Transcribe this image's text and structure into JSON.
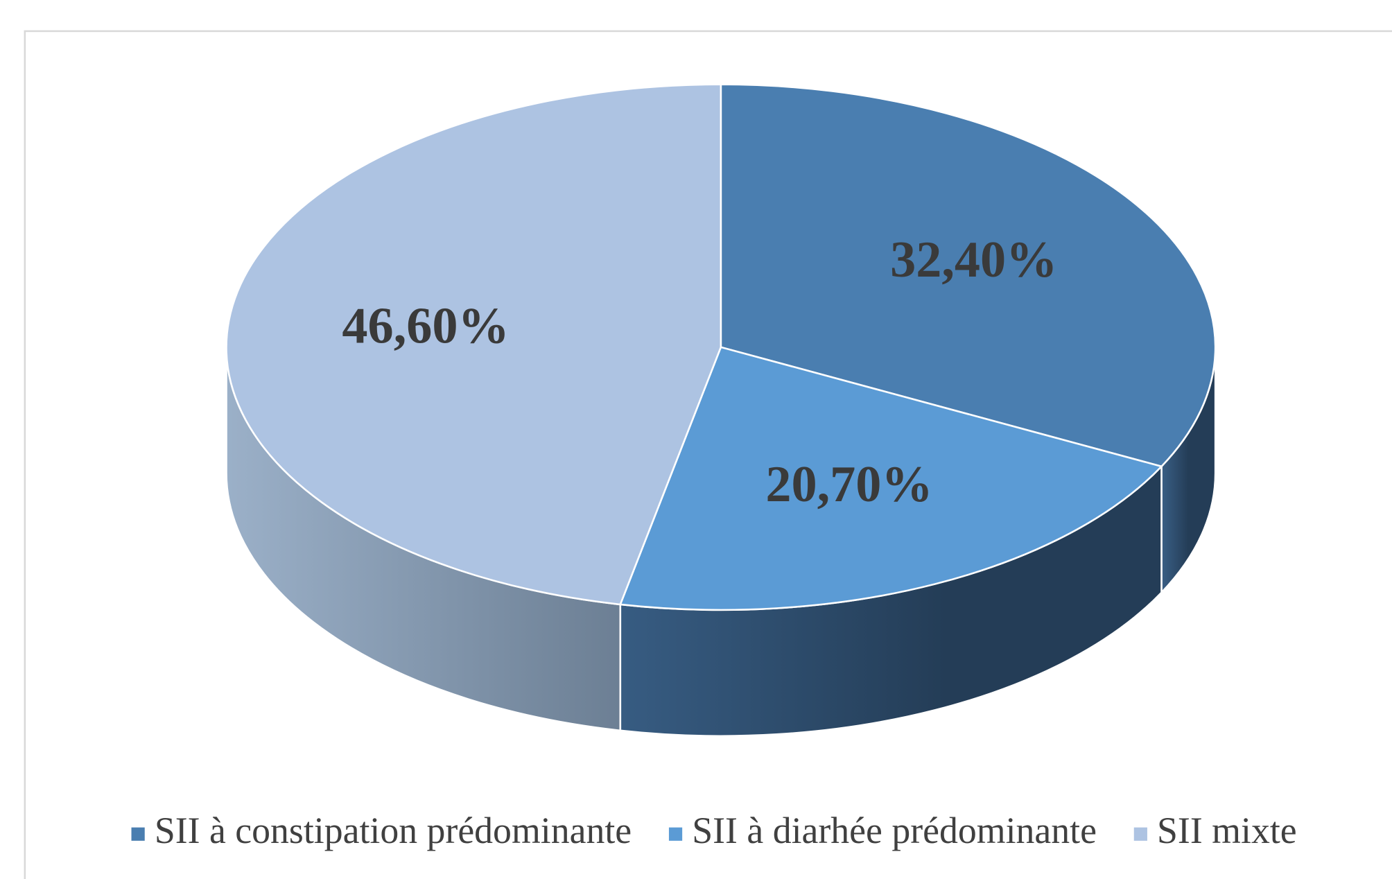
{
  "chart_data": {
    "type": "pie3d",
    "categories": [
      "SII à constipation prédominante",
      "SII à diarhée prédominante",
      "SII mixte"
    ],
    "values": [
      32.4,
      20.7,
      46.6
    ],
    "value_labels": [
      "32,40%",
      "20,70%",
      "46,60%"
    ],
    "colors": [
      "#4a7eb0",
      "#5b9bd5",
      "#adc3e2"
    ],
    "legend": "bottom"
  }
}
